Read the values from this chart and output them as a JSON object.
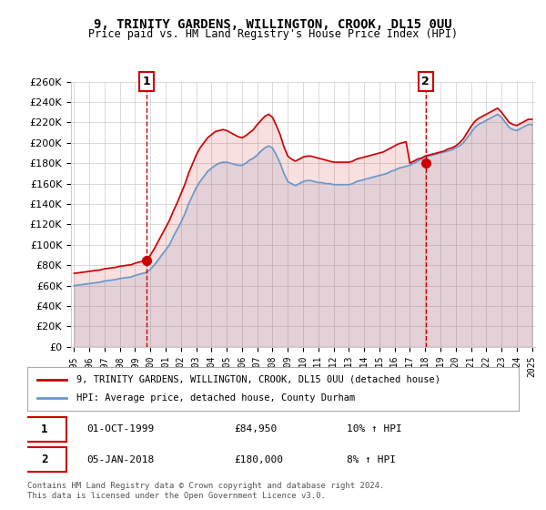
{
  "title": "9, TRINITY GARDENS, WILLINGTON, CROOK, DL15 0UU",
  "subtitle": "Price paid vs. HM Land Registry's House Price Index (HPI)",
  "legend_line1": "9, TRINITY GARDENS, WILLINGTON, CROOK, DL15 0UU (detached house)",
  "legend_line2": "HPI: Average price, detached house, County Durham",
  "footnote": "Contains HM Land Registry data © Crown copyright and database right 2024.\nThis data is licensed under the Open Government Licence v3.0.",
  "sale1_label": "1",
  "sale1_date": "01-OCT-1999",
  "sale1_price": "£84,950",
  "sale1_hpi": "10% ↑ HPI",
  "sale2_label": "2",
  "sale2_date": "05-JAN-2018",
  "sale2_price": "£180,000",
  "sale2_hpi": "8% ↑ HPI",
  "red_color": "#cc0000",
  "blue_color": "#6699cc",
  "background_color": "#ffffff",
  "grid_color": "#cccccc",
  "ylim": [
    0,
    260000
  ],
  "yticks": [
    0,
    20000,
    40000,
    60000,
    80000,
    100000,
    120000,
    140000,
    160000,
    180000,
    200000,
    220000,
    240000,
    260000
  ],
  "x_start_year": 1995,
  "x_end_year": 2025,
  "sale1_year": 1999.75,
  "sale1_value": 84950,
  "sale2_year": 2018.03,
  "sale2_value": 180000,
  "hpi_years": [
    1995,
    1995.25,
    1995.5,
    1995.75,
    1996,
    1996.25,
    1996.5,
    1996.75,
    1997,
    1997.25,
    1997.5,
    1997.75,
    1998,
    1998.25,
    1998.5,
    1998.75,
    1999,
    1999.25,
    1999.5,
    1999.75,
    2000,
    2000.25,
    2000.5,
    2000.75,
    2001,
    2001.25,
    2001.5,
    2001.75,
    2002,
    2002.25,
    2002.5,
    2002.75,
    2003,
    2003.25,
    2003.5,
    2003.75,
    2004,
    2004.25,
    2004.5,
    2004.75,
    2005,
    2005.25,
    2005.5,
    2005.75,
    2006,
    2006.25,
    2006.5,
    2006.75,
    2007,
    2007.25,
    2007.5,
    2007.75,
    2008,
    2008.25,
    2008.5,
    2008.75,
    2009,
    2009.25,
    2009.5,
    2009.75,
    2010,
    2010.25,
    2010.5,
    2010.75,
    2011,
    2011.25,
    2011.5,
    2011.75,
    2012,
    2012.25,
    2012.5,
    2012.75,
    2013,
    2013.25,
    2013.5,
    2013.75,
    2014,
    2014.25,
    2014.5,
    2014.75,
    2015,
    2015.25,
    2015.5,
    2015.75,
    2016,
    2016.25,
    2016.5,
    2016.75,
    2017,
    2017.25,
    2017.5,
    2017.75,
    2018,
    2018.25,
    2018.5,
    2018.75,
    2019,
    2019.25,
    2019.5,
    2019.75,
    2020,
    2020.25,
    2020.5,
    2020.75,
    2021,
    2021.25,
    2021.5,
    2021.75,
    2022,
    2022.25,
    2022.5,
    2022.75,
    2023,
    2023.25,
    2023.5,
    2023.75,
    2024,
    2024.25,
    2024.5,
    2024.75,
    2025
  ],
  "hpi_values": [
    60000,
    60500,
    61000,
    61500,
    62000,
    62500,
    63000,
    63500,
    64500,
    65000,
    65500,
    66000,
    67000,
    67500,
    68000,
    68500,
    70000,
    71000,
    72000,
    73000,
    76000,
    80000,
    85000,
    90000,
    95000,
    100000,
    108000,
    115000,
    122000,
    130000,
    140000,
    148000,
    156000,
    162000,
    167000,
    172000,
    175000,
    178000,
    180000,
    181000,
    181000,
    180000,
    179000,
    178000,
    178000,
    180000,
    183000,
    185000,
    188000,
    192000,
    195000,
    197000,
    195000,
    188000,
    180000,
    170000,
    162000,
    160000,
    158000,
    160000,
    162000,
    163000,
    163000,
    162000,
    161000,
    161000,
    160000,
    160000,
    159000,
    159000,
    159000,
    159000,
    159000,
    160000,
    162000,
    163000,
    164000,
    165000,
    166000,
    167000,
    168000,
    169000,
    170000,
    172000,
    173000,
    175000,
    176000,
    177000,
    178000,
    180000,
    182000,
    184000,
    186000,
    187000,
    188000,
    189000,
    190000,
    191000,
    192000,
    193000,
    195000,
    197000,
    200000,
    205000,
    210000,
    215000,
    218000,
    220000,
    222000,
    224000,
    226000,
    228000,
    225000,
    220000,
    215000,
    213000,
    212000,
    214000,
    216000,
    218000,
    218000
  ],
  "red_years": [
    1995,
    1995.25,
    1995.5,
    1995.75,
    1996,
    1996.25,
    1996.5,
    1996.75,
    1997,
    1997.25,
    1997.5,
    1997.75,
    1998,
    1998.25,
    1998.5,
    1998.75,
    1999,
    1999.25,
    1999.5,
    1999.75,
    2000,
    2000.25,
    2000.5,
    2000.75,
    2001,
    2001.25,
    2001.5,
    2001.75,
    2002,
    2002.25,
    2002.5,
    2002.75,
    2003,
    2003.25,
    2003.5,
    2003.75,
    2004,
    2004.25,
    2004.5,
    2004.75,
    2005,
    2005.25,
    2005.5,
    2005.75,
    2006,
    2006.25,
    2006.5,
    2006.75,
    2007,
    2007.25,
    2007.5,
    2007.75,
    2008,
    2008.25,
    2008.5,
    2008.75,
    2009,
    2009.25,
    2009.5,
    2009.75,
    2010,
    2010.25,
    2010.5,
    2010.75,
    2011,
    2011.25,
    2011.5,
    2011.75,
    2012,
    2012.25,
    2012.5,
    2012.75,
    2013,
    2013.25,
    2013.5,
    2013.75,
    2014,
    2014.25,
    2014.5,
    2014.75,
    2015,
    2015.25,
    2015.5,
    2015.75,
    2016,
    2016.25,
    2016.5,
    2016.75,
    2017,
    2017.25,
    2017.5,
    2017.75,
    2018,
    2018.25,
    2018.5,
    2018.75,
    2019,
    2019.25,
    2019.5,
    2019.75,
    2020,
    2020.25,
    2020.5,
    2020.75,
    2021,
    2021.25,
    2021.5,
    2021.75,
    2022,
    2022.25,
    2022.5,
    2022.75,
    2023,
    2023.25,
    2023.5,
    2023.75,
    2024,
    2024.25,
    2024.5,
    2024.75,
    2025
  ],
  "red_values": [
    72000,
    72500,
    73000,
    73500,
    74000,
    74500,
    75000,
    75500,
    76500,
    77000,
    77500,
    78000,
    79000,
    79500,
    80000,
    80500,
    82000,
    83000,
    84000,
    84950,
    90000,
    96000,
    103000,
    110000,
    117000,
    124000,
    133000,
    141000,
    150000,
    159000,
    170000,
    179000,
    188000,
    195000,
    200000,
    205000,
    208000,
    211000,
    212000,
    213000,
    212000,
    210000,
    208000,
    206000,
    205000,
    207000,
    210000,
    213000,
    218000,
    222000,
    226000,
    228000,
    225000,
    217000,
    208000,
    196000,
    187000,
    184000,
    182000,
    184000,
    186000,
    187000,
    187000,
    186000,
    185000,
    184000,
    183000,
    182000,
    181000,
    181000,
    181000,
    181000,
    181000,
    182000,
    184000,
    185000,
    186000,
    187000,
    188000,
    189000,
    190000,
    191000,
    193000,
    195000,
    197000,
    199000,
    200000,
    201000,
    180000,
    182000,
    184000,
    185000,
    187000,
    188000,
    189000,
    190000,
    191000,
    192000,
    194000,
    195000,
    197000,
    200000,
    204000,
    210000,
    216000,
    221000,
    224000,
    226000,
    228000,
    230000,
    232000,
    234000,
    230000,
    225000,
    220000,
    218000,
    217000,
    219000,
    221000,
    223000,
    223000
  ]
}
